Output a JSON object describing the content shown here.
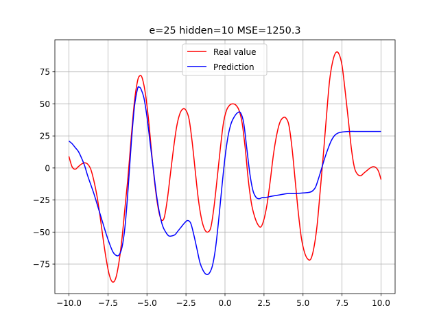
{
  "chart_data": {
    "type": "line",
    "title": "e=25 hidden=10 MSE=1250.3",
    "xlabel": "",
    "ylabel": "",
    "xlim": [
      -10.9,
      10.9
    ],
    "ylim": [
      -98,
      100
    ],
    "xticks": [
      -10.0,
      -7.5,
      -5.0,
      -2.5,
      0.0,
      2.5,
      5.0,
      7.5,
      10.0
    ],
    "xtick_labels": [
      "−10.0",
      "−7.5",
      "−5.0",
      "−2.5",
      "0.0",
      "2.5",
      "5.0",
      "7.5",
      "10.0"
    ],
    "yticks": [
      -75,
      -50,
      -25,
      0,
      25,
      50,
      75
    ],
    "ytick_labels": [
      "−75",
      "−50",
      "−25",
      "0",
      "25",
      "50",
      "75"
    ],
    "grid": true,
    "legend_position": "upper center",
    "series": [
      {
        "name": "Real value",
        "color": "#ff0000",
        "points": [
          [
            -10,
            9
          ],
          [
            -9.8,
            1
          ],
          [
            -9.6,
            -1
          ],
          [
            -9.4,
            1
          ],
          [
            -9.2,
            3
          ],
          [
            -9,
            4
          ],
          [
            -8.8,
            3
          ],
          [
            -8.6,
            -1
          ],
          [
            -8.4,
            -10
          ],
          [
            -8.2,
            -22
          ],
          [
            -8,
            -38
          ],
          [
            -7.8,
            -56
          ],
          [
            -7.6,
            -72
          ],
          [
            -7.4,
            -84
          ],
          [
            -7.2,
            -89
          ],
          [
            -7,
            -86
          ],
          [
            -6.8,
            -74
          ],
          [
            -6.6,
            -55
          ],
          [
            -6.4,
            -30
          ],
          [
            -6.2,
            -5
          ],
          [
            -6,
            25
          ],
          [
            -5.8,
            52
          ],
          [
            -5.6,
            68
          ],
          [
            -5.45,
            72
          ],
          [
            -5.3,
            70
          ],
          [
            -5.1,
            58
          ],
          [
            -4.9,
            38
          ],
          [
            -4.7,
            12
          ],
          [
            -4.5,
            -12
          ],
          [
            -4.3,
            -30
          ],
          [
            -4.1,
            -40
          ],
          [
            -3.9,
            -39
          ],
          [
            -3.7,
            -25
          ],
          [
            -3.5,
            -5
          ],
          [
            -3.3,
            15
          ],
          [
            -3.1,
            32
          ],
          [
            -2.9,
            42
          ],
          [
            -2.7,
            46
          ],
          [
            -2.5,
            45
          ],
          [
            -2.3,
            38
          ],
          [
            -2.1,
            20
          ],
          [
            -1.9,
            -3
          ],
          [
            -1.7,
            -25
          ],
          [
            -1.5,
            -40
          ],
          [
            -1.3,
            -48
          ],
          [
            -1.1,
            -50
          ],
          [
            -0.9,
            -46
          ],
          [
            -0.7,
            -30
          ],
          [
            -0.5,
            -8
          ],
          [
            -0.3,
            15
          ],
          [
            -0.1,
            35
          ],
          [
            0.1,
            45
          ],
          [
            0.3,
            49
          ],
          [
            0.5,
            50
          ],
          [
            0.7,
            49
          ],
          [
            0.9,
            45
          ],
          [
            1.1,
            35
          ],
          [
            1.3,
            15
          ],
          [
            1.5,
            -10
          ],
          [
            1.7,
            -28
          ],
          [
            1.9,
            -38
          ],
          [
            2.1,
            -44
          ],
          [
            2.3,
            -46
          ],
          [
            2.5,
            -40
          ],
          [
            2.7,
            -28
          ],
          [
            2.9,
            -10
          ],
          [
            3.1,
            10
          ],
          [
            3.3,
            25
          ],
          [
            3.5,
            35
          ],
          [
            3.7,
            39
          ],
          [
            3.9,
            39
          ],
          [
            4.1,
            33
          ],
          [
            4.3,
            15
          ],
          [
            4.5,
            -10
          ],
          [
            4.7,
            -35
          ],
          [
            4.9,
            -55
          ],
          [
            5.1,
            -66
          ],
          [
            5.3,
            -71
          ],
          [
            5.5,
            -71
          ],
          [
            5.7,
            -62
          ],
          [
            5.9,
            -45
          ],
          [
            6.1,
            -18
          ],
          [
            6.3,
            10
          ],
          [
            6.5,
            40
          ],
          [
            6.7,
            68
          ],
          [
            6.9,
            83
          ],
          [
            7.1,
            90
          ],
          [
            7.3,
            89
          ],
          [
            7.5,
            80
          ],
          [
            7.7,
            60
          ],
          [
            7.9,
            38
          ],
          [
            8.1,
            15
          ],
          [
            8.3,
            0
          ],
          [
            8.5,
            -5
          ],
          [
            8.7,
            -6
          ],
          [
            8.9,
            -4
          ],
          [
            9.1,
            -2
          ],
          [
            9.3,
            0
          ],
          [
            9.5,
            1
          ],
          [
            9.7,
            0
          ],
          [
            9.85,
            -3
          ],
          [
            10,
            -9
          ]
        ]
      },
      {
        "name": "Prediction",
        "color": "#0000ff",
        "points": [
          [
            -10,
            21
          ],
          [
            -9.8,
            19
          ],
          [
            -9.6,
            16
          ],
          [
            -9.4,
            13
          ],
          [
            -9.2,
            8
          ],
          [
            -9,
            2
          ],
          [
            -8.8,
            -6
          ],
          [
            -8.6,
            -13
          ],
          [
            -8.4,
            -20
          ],
          [
            -8.2,
            -28
          ],
          [
            -8,
            -36
          ],
          [
            -7.8,
            -44
          ],
          [
            -7.6,
            -52
          ],
          [
            -7.4,
            -59
          ],
          [
            -7.2,
            -65
          ],
          [
            -7,
            -68
          ],
          [
            -6.8,
            -68
          ],
          [
            -6.6,
            -62
          ],
          [
            -6.4,
            -45
          ],
          [
            -6.2,
            -15
          ],
          [
            -6,
            20
          ],
          [
            -5.8,
            48
          ],
          [
            -5.6,
            62
          ],
          [
            -5.5,
            63
          ],
          [
            -5.4,
            62
          ],
          [
            -5.2,
            55
          ],
          [
            -5,
            40
          ],
          [
            -4.8,
            20
          ],
          [
            -4.6,
            0
          ],
          [
            -4.4,
            -20
          ],
          [
            -4.2,
            -35
          ],
          [
            -4,
            -45
          ],
          [
            -3.8,
            -50
          ],
          [
            -3.6,
            -53
          ],
          [
            -3.4,
            -53
          ],
          [
            -3.2,
            -52
          ],
          [
            -3,
            -49
          ],
          [
            -2.8,
            -46
          ],
          [
            -2.6,
            -43
          ],
          [
            -2.4,
            -41
          ],
          [
            -2.2,
            -43
          ],
          [
            -2,
            -52
          ],
          [
            -1.8,
            -63
          ],
          [
            -1.6,
            -74
          ],
          [
            -1.4,
            -80
          ],
          [
            -1.2,
            -83
          ],
          [
            -1,
            -82
          ],
          [
            -0.8,
            -76
          ],
          [
            -0.6,
            -62
          ],
          [
            -0.4,
            -40
          ],
          [
            -0.2,
            -15
          ],
          [
            0,
            8
          ],
          [
            0.2,
            25
          ],
          [
            0.4,
            35
          ],
          [
            0.6,
            40
          ],
          [
            0.8,
            43
          ],
          [
            1,
            43
          ],
          [
            1.2,
            35
          ],
          [
            1.4,
            15
          ],
          [
            1.6,
            -5
          ],
          [
            1.8,
            -18
          ],
          [
            2,
            -23
          ],
          [
            2.2,
            -24
          ],
          [
            2.4,
            -23
          ],
          [
            2.6,
            -23
          ],
          [
            3,
            -22
          ],
          [
            3.5,
            -21
          ],
          [
            4,
            -20
          ],
          [
            4.5,
            -20
          ],
          [
            5,
            -19.5
          ],
          [
            5.4,
            -19
          ],
          [
            5.6,
            -18
          ],
          [
            5.8,
            -15
          ],
          [
            6,
            -8
          ],
          [
            6.2,
            0
          ],
          [
            6.4,
            8
          ],
          [
            6.6,
            15
          ],
          [
            6.8,
            21
          ],
          [
            7,
            25
          ],
          [
            7.2,
            27
          ],
          [
            7.5,
            28
          ],
          [
            8,
            28.5
          ],
          [
            8.5,
            28.5
          ],
          [
            9,
            28.5
          ],
          [
            9.5,
            28.5
          ],
          [
            10,
            28.5
          ]
        ]
      }
    ]
  }
}
